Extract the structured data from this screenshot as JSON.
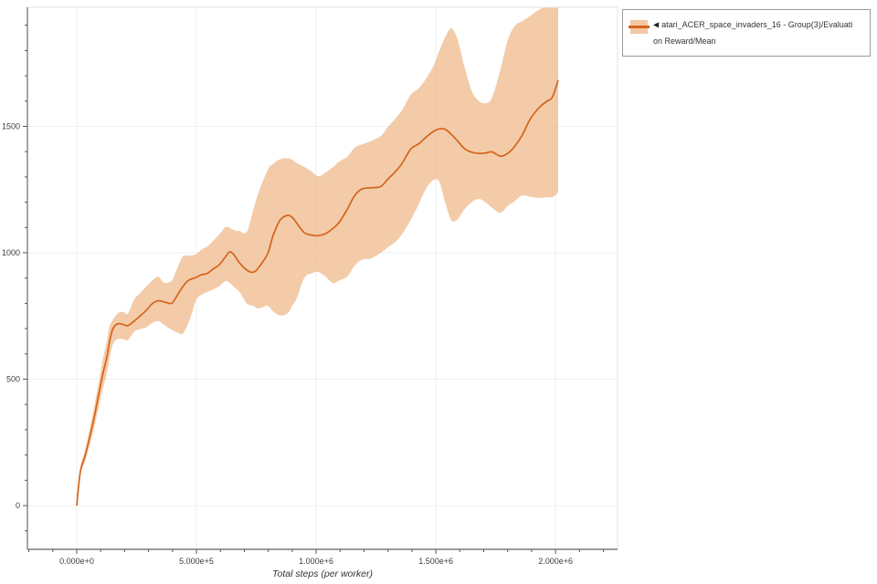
{
  "window": {
    "background": "#ffffff"
  },
  "legend": {
    "marker": "◀",
    "series_name": "atari_ACER_space_invaders_16 - Group(3)/Evaluation Reward/Mean",
    "label_line1": "atari_ACER_space_invaders_16 - Group(3)/Evaluati",
    "label_line2": "on Reward/Mean"
  },
  "colors": {
    "line": "#d4641a",
    "band": "#efb98c",
    "grid": "#efefef",
    "border": "#e3e3e3",
    "spine": "#7f7f7f",
    "tick": "#555555",
    "tick_label": "#3d3d3d",
    "axis_title": "#333333"
  },
  "chart_data": {
    "type": "line",
    "title": "",
    "xlabel": "Total steps (per worker)",
    "ylabel": "",
    "grid": "major",
    "legend_position": "top-right",
    "x_domain": [
      -206000,
      2259000
    ],
    "y_domain": [
      -173,
      1971
    ],
    "x_major_ticks": [
      0,
      500000,
      1000000,
      1500000,
      2000000
    ],
    "x_major_tick_labels": [
      "0.000e+0",
      "5.000e+5",
      "1.000e+6",
      "1.500e+6",
      "2.000e+6"
    ],
    "x_minor_tick_step": 100000,
    "y_major_ticks": [
      0,
      500,
      1000,
      1500
    ],
    "y_major_tick_labels": [
      "0",
      "500",
      "1000",
      "1500"
    ],
    "y_minor_tick_step": 100,
    "series": [
      {
        "name": "atari_ACER_space_invaders_16 - Group(3)/Evaluation Reward/Mean",
        "line_color": "#d4641a",
        "band_color": "#efb98c",
        "x": [
          0,
          15000,
          34000,
          53000,
          73000,
          88000,
          100000,
          111000,
          126000,
          137000,
          148000,
          160000,
          176000,
          195000,
          214000,
          240000,
          265000,
          290000,
          315000,
          340000,
          365000,
          397000,
          420000,
          443000,
          465000,
          481000,
          500000,
          520000,
          545000,
          570000,
          595000,
          622000,
          640000,
          660000,
          680000,
          710000,
          737000,
          760000,
          798000,
          820000,
          850000,
          880000,
          900000,
          920000,
          950000,
          980000,
          1010000,
          1040000,
          1070000,
          1095000,
          1130000,
          1160000,
          1190000,
          1230000,
          1270000,
          1300000,
          1330000,
          1360000,
          1395000,
          1430000,
          1460000,
          1490000,
          1515000,
          1540000,
          1565000,
          1590000,
          1620000,
          1650000,
          1680000,
          1710000,
          1735000,
          1770000,
          1800000,
          1830000,
          1860000,
          1890000,
          1915000,
          1940000,
          1965000,
          1985000,
          2000000,
          2011000
        ],
        "mean": [
          0,
          133,
          194,
          266,
          349,
          420,
          478,
          528,
          588,
          648,
          692,
          712,
          720,
          716,
          712,
          730,
          750,
          772,
          798,
          810,
          806,
          800,
          832,
          866,
          890,
          897,
          903,
          913,
          918,
          936,
          952,
          985,
          1004,
          988,
          960,
          932,
          923,
          942,
          997,
          1068,
          1130,
          1148,
          1140,
          1116,
          1080,
          1070,
          1068,
          1076,
          1096,
          1119,
          1172,
          1225,
          1252,
          1257,
          1262,
          1292,
          1320,
          1355,
          1410,
          1432,
          1458,
          1480,
          1490,
          1488,
          1468,
          1443,
          1412,
          1398,
          1393,
          1395,
          1399,
          1382,
          1393,
          1422,
          1464,
          1522,
          1556,
          1582,
          1600,
          1613,
          1650,
          1683
        ],
        "band_lower": [
          0,
          120,
          172,
          235,
          308,
          372,
          425,
          468,
          525,
          582,
          628,
          652,
          660,
          658,
          655,
          688,
          698,
          705,
          722,
          730,
          715,
          695,
          685,
          680,
          720,
          760,
          815,
          833,
          845,
          855,
          868,
          888,
          880,
          862,
          845,
          800,
          790,
          780,
          790,
          768,
          752,
          760,
          790,
          822,
          900,
          918,
          924,
          905,
          880,
          890,
          905,
          948,
          972,
          978,
          1000,
          1022,
          1042,
          1075,
          1130,
          1195,
          1255,
          1288,
          1280,
          1195,
          1128,
          1132,
          1172,
          1200,
          1213,
          1198,
          1178,
          1158,
          1185,
          1205,
          1226,
          1222,
          1218,
          1217,
          1219,
          1220,
          1228,
          1240
        ],
        "band_upper": [
          0,
          148,
          218,
          298,
          392,
          468,
          530,
          588,
          650,
          708,
          730,
          748,
          764,
          766,
          760,
          815,
          840,
          866,
          890,
          905,
          882,
          890,
          940,
          985,
          988,
          990,
          995,
          1012,
          1025,
          1048,
          1072,
          1102,
          1098,
          1088,
          1086,
          1082,
          1168,
          1240,
          1328,
          1352,
          1370,
          1374,
          1368,
          1355,
          1340,
          1322,
          1302,
          1318,
          1338,
          1360,
          1380,
          1415,
          1428,
          1442,
          1462,
          1498,
          1530,
          1565,
          1625,
          1652,
          1690,
          1740,
          1800,
          1855,
          1888,
          1845,
          1735,
          1640,
          1600,
          1592,
          1615,
          1725,
          1840,
          1898,
          1916,
          1934,
          1952,
          1966,
          1985,
          1990,
          1990,
          1990
        ]
      }
    ]
  }
}
